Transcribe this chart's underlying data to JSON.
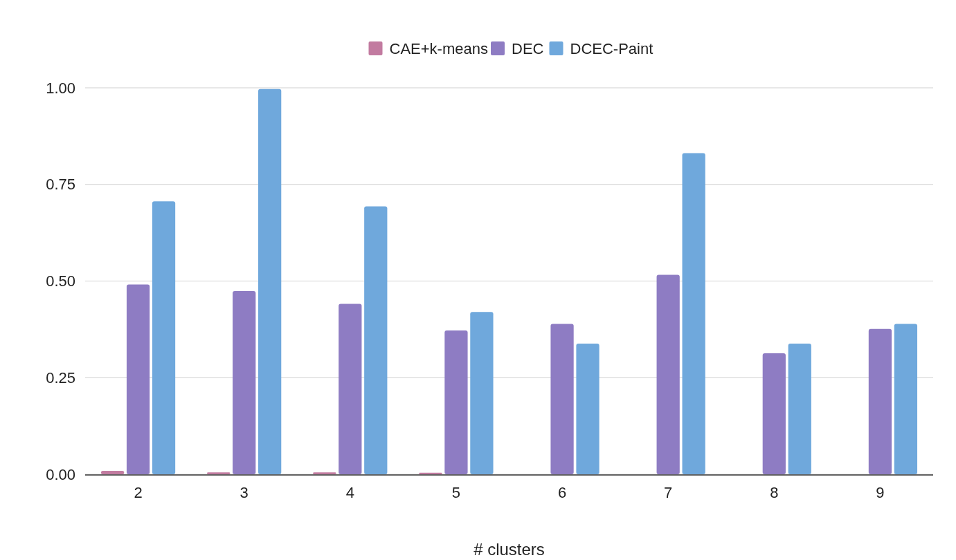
{
  "chart_data": {
    "type": "bar",
    "xlabel": "# clusters",
    "categories": [
      "2",
      "3",
      "4",
      "5",
      "6",
      "7",
      "8",
      "9"
    ],
    "series": [
      {
        "name": "CAE+k-means",
        "color": "#c27ba0",
        "values": [
          0.009,
          0.005,
          0.005,
          0.004,
          0,
          0,
          0,
          0
        ]
      },
      {
        "name": "DEC",
        "color": "#8e7cc3",
        "values": [
          0.491,
          0.474,
          0.441,
          0.372,
          0.389,
          0.516,
          0.313,
          0.376
        ]
      },
      {
        "name": "DCEC-Paint",
        "color": "#6fa8dc",
        "values": [
          0.706,
          0.997,
          0.693,
          0.42,
          0.338,
          0.831,
          0.338,
          0.389
        ]
      }
    ],
    "ylim": [
      0,
      1
    ],
    "yticks": [
      {
        "value": 0,
        "label": "0.00"
      },
      {
        "value": 0.25,
        "label": "0.25"
      },
      {
        "value": 0.5,
        "label": "0.50"
      },
      {
        "value": 0.75,
        "label": "0.75"
      },
      {
        "value": 1,
        "label": "1.00"
      }
    ],
    "grid": "y",
    "legend": "top"
  }
}
